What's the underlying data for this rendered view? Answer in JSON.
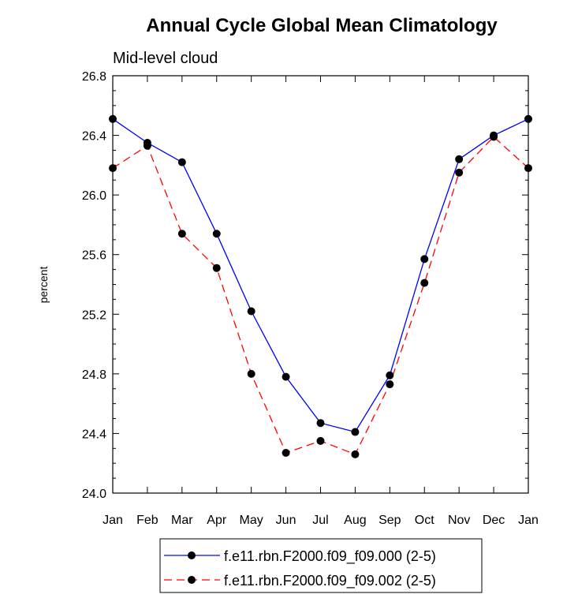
{
  "chart_data": {
    "type": "line",
    "title": "Annual Cycle Global Mean Climatology",
    "subtitle": "Mid-level cloud",
    "xlabel": "",
    "ylabel": "percent",
    "categories": [
      "Jan",
      "Feb",
      "Mar",
      "Apr",
      "May",
      "Jun",
      "Jul",
      "Aug",
      "Sep",
      "Oct",
      "Nov",
      "Dec",
      "Jan"
    ],
    "ylim": [
      24.0,
      26.8
    ],
    "yticks": [
      "24.0",
      "24.4",
      "24.8",
      "25.2",
      "25.6",
      "26.0",
      "26.4",
      "26.8"
    ],
    "grid": false,
    "legend_position": "bottom-center",
    "series": [
      {
        "name": "f.e11.rbn.F2000.f09_f09.000 (2-5)",
        "color": "#0000ff",
        "line_style": "solid",
        "marker": "filled-circle",
        "values": [
          26.51,
          26.35,
          26.22,
          25.74,
          25.22,
          24.78,
          24.47,
          24.41,
          24.79,
          25.57,
          26.24,
          26.4,
          26.51
        ]
      },
      {
        "name": "f.e11.rbn.F2000.f09_f09.002 (2-5)",
        "color": "#ff0000",
        "line_style": "dashed",
        "marker": "filled-circle",
        "values": [
          26.18,
          26.33,
          25.74,
          25.51,
          24.8,
          24.27,
          24.35,
          24.26,
          24.73,
          25.41,
          26.15,
          26.39,
          26.18
        ]
      }
    ]
  }
}
